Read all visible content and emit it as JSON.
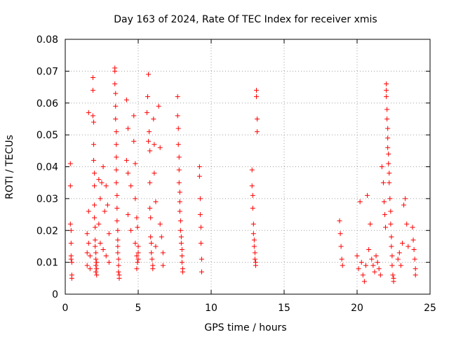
{
  "chart_data": {
    "type": "scatter",
    "title": "Day 163 of 2024, Rate Of TEC Index for receiver xmis",
    "xlabel": "GPS time / hours",
    "ylabel": "ROTI / TECUs",
    "xlim": [
      0,
      25
    ],
    "ylim": [
      0,
      0.08
    ],
    "xticks": [
      "0",
      "5",
      "10",
      "15",
      "20",
      "25"
    ],
    "yticks": [
      "0",
      "0.01",
      "0.02",
      "0.03",
      "0.04",
      "0.05",
      "0.06",
      "0.07",
      "0.08"
    ],
    "grid": true,
    "marker": "plus",
    "color": "#ff0000",
    "series": [
      {
        "x": [
          0.35,
          0.35,
          0.35,
          0.4,
          0.4,
          0.4,
          0.4,
          0.45,
          0.45,
          0.45,
          1.5,
          1.5,
          1.5,
          1.6,
          1.6,
          1.6,
          1.7,
          1.7,
          1.9,
          1.9,
          1.9,
          1.95,
          1.95,
          1.95,
          2.0,
          2.0,
          2.0,
          2.0,
          2.05,
          2.05,
          2.05,
          2.1,
          2.1,
          2.1,
          2.1,
          2.15,
          2.15,
          2.15,
          2.3,
          2.3,
          2.4,
          2.4,
          2.5,
          2.6,
          2.6,
          2.7,
          2.8,
          2.8,
          2.9,
          3.0,
          3.0,
          3.4,
          3.4,
          3.4,
          3.45,
          3.45,
          3.45,
          3.5,
          3.5,
          3.5,
          3.5,
          3.5,
          3.55,
          3.55,
          3.55,
          3.6,
          3.6,
          3.6,
          3.6,
          3.65,
          3.65,
          3.65,
          3.7,
          3.7,
          4.2,
          4.2,
          4.3,
          4.3,
          4.3,
          4.5,
          4.5,
          4.7,
          4.7,
          4.8,
          4.8,
          4.8,
          4.9,
          4.9,
          4.9,
          4.95,
          4.95,
          5.0,
          5.0,
          5.0,
          5.6,
          5.65,
          5.7,
          5.7,
          5.75,
          5.8,
          5.8,
          5.8,
          5.85,
          5.85,
          5.9,
          5.9,
          5.95,
          6.0,
          6.0,
          6.05,
          6.1,
          6.1,
          6.2,
          6.2,
          6.4,
          6.5,
          6.5,
          6.6,
          6.7,
          6.7,
          7.7,
          7.7,
          7.75,
          7.75,
          7.8,
          7.8,
          7.8,
          7.85,
          7.85,
          7.85,
          7.9,
          7.9,
          7.95,
          7.95,
          8.0,
          8.0,
          8.0,
          8.05,
          8.05,
          9.2,
          9.2,
          9.25,
          9.25,
          9.3,
          9.3,
          9.35,
          9.35,
          12.8,
          12.8,
          12.85,
          12.85,
          12.9,
          12.9,
          12.95,
          12.95,
          13.0,
          13.0,
          13.05,
          13.05,
          13.1,
          13.1,
          13.15,
          13.15,
          18.8,
          18.85,
          18.9,
          18.95,
          19.0,
          20.0,
          20.1,
          20.2,
          20.3,
          20.4,
          20.5,
          20.6,
          20.7,
          20.8,
          20.9,
          21.0,
          21.1,
          21.2,
          21.3,
          21.4,
          21.5,
          21.6,
          21.7,
          21.8,
          21.85,
          21.9,
          21.95,
          22.0,
          22.0,
          22.0,
          22.05,
          22.05,
          22.1,
          22.1,
          22.1,
          22.15,
          22.15,
          22.2,
          22.2,
          22.25,
          22.3,
          22.3,
          22.35,
          22.35,
          22.4,
          22.4,
          22.45,
          22.5,
          22.5,
          22.8,
          22.9,
          23.0,
          23.1,
          23.2,
          23.3,
          23.4,
          23.5,
          23.8,
          23.85,
          23.9,
          23.95,
          24.0,
          24.0
        ],
        "y": [
          0.041,
          0.034,
          0.022,
          0.02,
          0.016,
          0.012,
          0.011,
          0.01,
          0.006,
          0.005,
          0.019,
          0.013,
          0.009,
          0.057,
          0.026,
          0.016,
          0.012,
          0.008,
          0.068,
          0.064,
          0.056,
          0.054,
          0.047,
          0.042,
          0.038,
          0.034,
          0.028,
          0.024,
          0.021,
          0.017,
          0.015,
          0.013,
          0.011,
          0.009,
          0.007,
          0.006,
          0.008,
          0.01,
          0.036,
          0.022,
          0.03,
          0.016,
          0.035,
          0.04,
          0.014,
          0.026,
          0.034,
          0.012,
          0.028,
          0.019,
          0.01,
          0.071,
          0.07,
          0.066,
          0.063,
          0.059,
          0.055,
          0.051,
          0.047,
          0.043,
          0.039,
          0.035,
          0.031,
          0.027,
          0.023,
          0.02,
          0.017,
          0.015,
          0.013,
          0.011,
          0.009,
          0.007,
          0.006,
          0.005,
          0.061,
          0.042,
          0.052,
          0.038,
          0.025,
          0.034,
          0.02,
          0.056,
          0.048,
          0.041,
          0.03,
          0.016,
          0.024,
          0.012,
          0.008,
          0.021,
          0.01,
          0.015,
          0.013,
          0.011,
          0.057,
          0.062,
          0.069,
          0.048,
          0.051,
          0.045,
          0.035,
          0.027,
          0.024,
          0.018,
          0.016,
          0.013,
          0.011,
          0.009,
          0.008,
          0.055,
          0.047,
          0.038,
          0.029,
          0.015,
          0.059,
          0.046,
          0.022,
          0.018,
          0.013,
          0.009,
          0.062,
          0.056,
          0.052,
          0.047,
          0.043,
          0.039,
          0.035,
          0.032,
          0.029,
          0.026,
          0.023,
          0.02,
          0.018,
          0.016,
          0.014,
          0.012,
          0.01,
          0.008,
          0.007,
          0.04,
          0.037,
          0.03,
          0.025,
          0.021,
          0.016,
          0.011,
          0.007,
          0.039,
          0.034,
          0.031,
          0.027,
          0.022,
          0.019,
          0.017,
          0.015,
          0.013,
          0.011,
          0.01,
          0.009,
          0.064,
          0.062,
          0.055,
          0.051,
          0.023,
          0.019,
          0.015,
          0.011,
          0.009,
          0.012,
          0.008,
          0.029,
          0.01,
          0.006,
          0.004,
          0.009,
          0.031,
          0.014,
          0.022,
          0.011,
          0.009,
          0.007,
          0.012,
          0.01,
          0.008,
          0.006,
          0.04,
          0.035,
          0.029,
          0.025,
          0.021,
          0.066,
          0.064,
          0.062,
          0.058,
          0.055,
          0.052,
          0.049,
          0.046,
          0.044,
          0.041,
          0.038,
          0.035,
          0.03,
          0.026,
          0.022,
          0.018,
          0.015,
          0.012,
          0.009,
          0.006,
          0.004,
          0.005,
          0.011,
          0.013,
          0.009,
          0.016,
          0.028,
          0.03,
          0.022,
          0.015,
          0.021,
          0.017,
          0.014,
          0.011,
          0.008,
          0.006
        ]
      }
    ]
  }
}
